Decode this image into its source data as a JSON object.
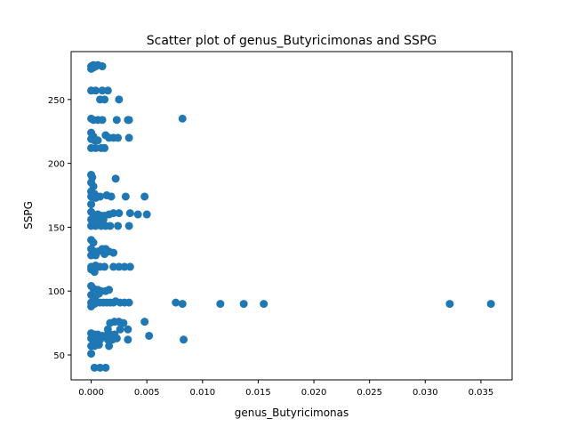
{
  "chart_data": {
    "type": "scatter",
    "title": "Scatter plot of genus_Butyricimonas and SSPG",
    "xlabel": "genus_Butyricimonas",
    "ylabel": "SSPG",
    "xlim": [
      -0.0018,
      0.0378
    ],
    "ylim": [
      30.5,
      287.5
    ],
    "x_ticks": [
      0.0,
      0.005,
      0.01,
      0.015,
      0.02,
      0.025,
      0.03,
      0.035
    ],
    "x_tick_labels": [
      "0.000",
      "0.005",
      "0.010",
      "0.015",
      "0.020",
      "0.025",
      "0.030",
      "0.035"
    ],
    "y_ticks": [
      50,
      100,
      150,
      200,
      250
    ],
    "y_tick_labels": [
      "50",
      "100",
      "150",
      "200",
      "250"
    ],
    "grid": false,
    "marker_color": "#1f77b4",
    "points": [
      [
        0.0,
        276
      ],
      [
        0.0002,
        277
      ],
      [
        0.0004,
        276
      ],
      [
        0.0006,
        277
      ],
      [
        0.001,
        276
      ],
      [
        0.0,
        274
      ],
      [
        0.0002,
        275
      ],
      [
        0.0,
        257
      ],
      [
        0.0004,
        257
      ],
      [
        0.001,
        257
      ],
      [
        0.0015,
        257
      ],
      [
        0.0008,
        250
      ],
      [
        0.0012,
        250
      ],
      [
        0.0025,
        250
      ],
      [
        0.0,
        235
      ],
      [
        0.0002,
        234
      ],
      [
        0.0006,
        234
      ],
      [
        0.001,
        234
      ],
      [
        0.0023,
        234
      ],
      [
        0.0033,
        234
      ],
      [
        0.0034,
        234
      ],
      [
        0.0082,
        235
      ],
      [
        0.0,
        224
      ],
      [
        0.0002,
        221
      ],
      [
        0.0,
        219
      ],
      [
        0.0003,
        218
      ],
      [
        0.0006,
        218
      ],
      [
        0.0013,
        222
      ],
      [
        0.0016,
        220
      ],
      [
        0.002,
        220
      ],
      [
        0.0024,
        220
      ],
      [
        0.0034,
        220
      ],
      [
        0.0,
        212
      ],
      [
        0.0004,
        212
      ],
      [
        0.0009,
        212
      ],
      [
        0.0012,
        212
      ],
      [
        0.0,
        191
      ],
      [
        0.0001,
        189
      ],
      [
        0.0,
        185
      ],
      [
        0.0002,
        182
      ],
      [
        0.0022,
        188
      ],
      [
        0.0,
        178
      ],
      [
        0.0003,
        176
      ],
      [
        0.0,
        174
      ],
      [
        0.0004,
        173
      ],
      [
        0.0008,
        174
      ],
      [
        0.0014,
        175
      ],
      [
        0.0018,
        174
      ],
      [
        0.0031,
        174
      ],
      [
        0.0048,
        174
      ],
      [
        0.0,
        168
      ],
      [
        0.0,
        162
      ],
      [
        0.0002,
        160
      ],
      [
        0.0006,
        160
      ],
      [
        0.0009,
        159
      ],
      [
        0.0012,
        159
      ],
      [
        0.0016,
        160
      ],
      [
        0.002,
        161
      ],
      [
        0.0025,
        161
      ],
      [
        0.0035,
        161
      ],
      [
        0.0042,
        160
      ],
      [
        0.005,
        160
      ],
      [
        0.0,
        156
      ],
      [
        0.0003,
        157
      ],
      [
        0.0008,
        154
      ],
      [
        0.0011,
        156
      ],
      [
        0.0,
        151
      ],
      [
        0.0004,
        151
      ],
      [
        0.0009,
        151
      ],
      [
        0.0013,
        151
      ],
      [
        0.0017,
        151
      ],
      [
        0.0024,
        151
      ],
      [
        0.0034,
        151
      ],
      [
        0.0,
        140
      ],
      [
        0.0002,
        138
      ],
      [
        0.0,
        133
      ],
      [
        0.0003,
        131
      ],
      [
        0.0006,
        131
      ],
      [
        0.001,
        133
      ],
      [
        0.0013,
        133
      ],
      [
        0.0016,
        131
      ],
      [
        0.002,
        130
      ],
      [
        0.0,
        128
      ],
      [
        0.0004,
        128
      ],
      [
        0.0012,
        129
      ],
      [
        0.0,
        119
      ],
      [
        0.0004,
        120
      ],
      [
        0.0008,
        119
      ],
      [
        0.0012,
        119
      ],
      [
        0.002,
        119
      ],
      [
        0.0025,
        119
      ],
      [
        0.003,
        119
      ],
      [
        0.0035,
        119
      ],
      [
        0.0,
        117
      ],
      [
        0.0003,
        115
      ],
      [
        0.0,
        104
      ],
      [
        0.0002,
        102
      ],
      [
        0.0006,
        101
      ],
      [
        0.0009,
        100
      ],
      [
        0.0013,
        100
      ],
      [
        0.0016,
        101
      ],
      [
        0.0,
        97
      ],
      [
        0.0004,
        96
      ],
      [
        0.0007,
        98
      ],
      [
        0.0,
        91
      ],
      [
        0.0002,
        91
      ],
      [
        0.0005,
        91
      ],
      [
        0.0008,
        91
      ],
      [
        0.0011,
        91
      ],
      [
        0.0014,
        91
      ],
      [
        0.0017,
        91
      ],
      [
        0.002,
        91
      ],
      [
        0.0022,
        92
      ],
      [
        0.0026,
        91
      ],
      [
        0.003,
        91
      ],
      [
        0.0034,
        91
      ],
      [
        0.0,
        88
      ],
      [
        0.0003,
        90
      ],
      [
        0.0076,
        91
      ],
      [
        0.0082,
        90
      ],
      [
        0.0116,
        90
      ],
      [
        0.0137,
        90
      ],
      [
        0.0155,
        90
      ],
      [
        0.0322,
        90
      ],
      [
        0.0359,
        90
      ],
      [
        0.0017,
        75
      ],
      [
        0.0021,
        76
      ],
      [
        0.0025,
        76
      ],
      [
        0.0029,
        75
      ],
      [
        0.0048,
        76
      ],
      [
        0.0015,
        70
      ],
      [
        0.0026,
        70
      ],
      [
        0.0033,
        70
      ],
      [
        0.0,
        67
      ],
      [
        0.0003,
        66
      ],
      [
        0.0006,
        66
      ],
      [
        0.001,
        65
      ],
      [
        0.0013,
        65
      ],
      [
        0.0017,
        66
      ],
      [
        0.0021,
        66
      ],
      [
        0.0,
        63
      ],
      [
        0.0004,
        62
      ],
      [
        0.0008,
        62
      ],
      [
        0.0015,
        62
      ],
      [
        0.0019,
        62
      ],
      [
        0.0023,
        63
      ],
      [
        0.0033,
        62
      ],
      [
        0.0052,
        65
      ],
      [
        0.0083,
        62
      ],
      [
        0.0002,
        59
      ],
      [
        0.0006,
        60
      ],
      [
        0.0,
        57
      ],
      [
        0.0003,
        57
      ],
      [
        0.0007,
        58
      ],
      [
        0.0016,
        57
      ],
      [
        0.0,
        51
      ],
      [
        0.0003,
        40
      ],
      [
        0.0008,
        40
      ],
      [
        0.0013,
        40
      ]
    ]
  }
}
